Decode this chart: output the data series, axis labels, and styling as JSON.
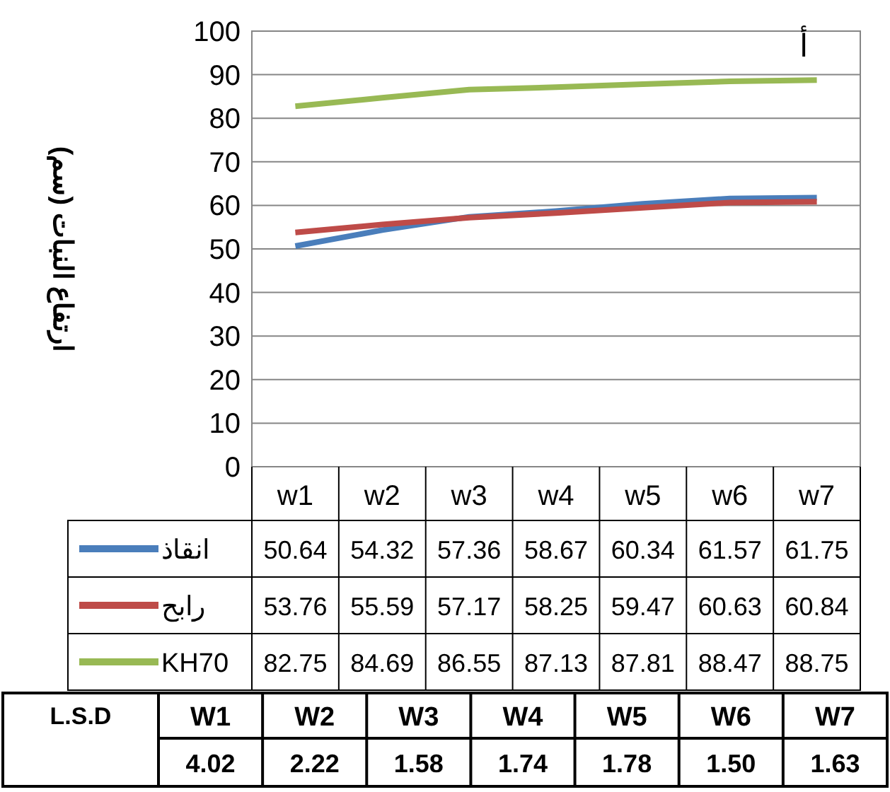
{
  "chart_data": {
    "type": "line",
    "title": "أ",
    "ylabel": "ارتفاع النبات (سم)",
    "categories": [
      "w1",
      "w2",
      "w3",
      "w4",
      "w5",
      "w6",
      "w7"
    ],
    "series": [
      {
        "name": "انقاذ",
        "color": "#4a7ebb",
        "values": [
          50.64,
          54.32,
          57.36,
          58.67,
          60.34,
          61.57,
          61.75
        ]
      },
      {
        "name": "رابح",
        "color": "#be4b48",
        "values": [
          53.76,
          55.59,
          57.17,
          58.25,
          59.47,
          60.63,
          60.84
        ]
      },
      {
        "name": "KH70",
        "color": "#98b954",
        "values": [
          82.75,
          84.69,
          86.55,
          87.13,
          87.81,
          88.47,
          88.75
        ]
      }
    ],
    "ylim": [
      0,
      100
    ],
    "yticks": [
      0,
      10,
      20,
      30,
      40,
      50,
      60,
      70,
      80,
      90,
      100
    ],
    "grid": "y",
    "legend": "bottom",
    "data_labels": true,
    "marker": "none",
    "line_style": "solid",
    "annotations": [
      "L.S.D",
      "W1",
      "W2",
      "W3",
      "W4",
      "W5",
      "W6",
      "W7",
      "4.02",
      "2.22",
      "1.58",
      "1.74",
      "1.78",
      "1.50",
      "1.63"
    ]
  }
}
